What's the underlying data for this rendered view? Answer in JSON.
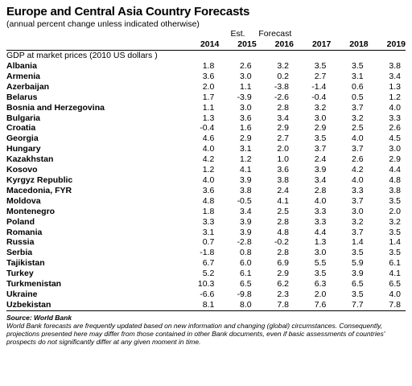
{
  "title": "Europe and Central Asia Country Forecasts",
  "subtitle": "(annual percent change unless indicated otherwise)",
  "header": {
    "est_label": "Est.",
    "forecast_label": "Forecast",
    "years": [
      "2014",
      "2015",
      "2016",
      "2017",
      "2018",
      "2019"
    ]
  },
  "section_label": "GDP at market prices (2010 US dollars )",
  "rows": [
    {
      "country": "Albania",
      "values": [
        "1.8",
        "2.6",
        "3.2",
        "3.5",
        "3.5",
        "3.8"
      ]
    },
    {
      "country": "Armenia",
      "values": [
        "3.6",
        "3.0",
        "0.2",
        "2.7",
        "3.1",
        "3.4"
      ]
    },
    {
      "country": "Azerbaijan",
      "values": [
        "2.0",
        "1.1",
        "-3.8",
        "-1.4",
        "0.6",
        "1.3"
      ]
    },
    {
      "country": "Belarus",
      "values": [
        "1.7",
        "-3.9",
        "-2.6",
        "-0.4",
        "0.5",
        "1.2"
      ]
    },
    {
      "country": "Bosnia and Herzegovina",
      "values": [
        "1.1",
        "3.0",
        "2.8",
        "3.2",
        "3.7",
        "4.0"
      ]
    },
    {
      "country": "Bulgaria",
      "values": [
        "1.3",
        "3.6",
        "3.4",
        "3.0",
        "3.2",
        "3.3"
      ]
    },
    {
      "country": "Croatia",
      "values": [
        "-0.4",
        "1.6",
        "2.9",
        "2.9",
        "2.5",
        "2.6"
      ]
    },
    {
      "country": "Georgia",
      "values": [
        "4.6",
        "2.9",
        "2.7",
        "3.5",
        "4.0",
        "4.5"
      ]
    },
    {
      "country": "Hungary",
      "values": [
        "4.0",
        "3.1",
        "2.0",
        "3.7",
        "3.7",
        "3.0"
      ]
    },
    {
      "country": "Kazakhstan",
      "values": [
        "4.2",
        "1.2",
        "1.0",
        "2.4",
        "2.6",
        "2.9"
      ]
    },
    {
      "country": "Kosovo",
      "values": [
        "1.2",
        "4.1",
        "3.6",
        "3.9",
        "4.2",
        "4.4"
      ]
    },
    {
      "country": "Kyrgyz Republic",
      "values": [
        "4.0",
        "3.9",
        "3.8",
        "3.4",
        "4.0",
        "4.8"
      ]
    },
    {
      "country": "Macedonia, FYR",
      "values": [
        "3.6",
        "3.8",
        "2.4",
        "2.8",
        "3.3",
        "3.8"
      ]
    },
    {
      "country": "Moldova",
      "values": [
        "4.8",
        "-0.5",
        "4.1",
        "4.0",
        "3.7",
        "3.5"
      ]
    },
    {
      "country": "Montenegro",
      "values": [
        "1.8",
        "3.4",
        "2.5",
        "3.3",
        "3.0",
        "2.0"
      ]
    },
    {
      "country": "Poland",
      "values": [
        "3.3",
        "3.9",
        "2.8",
        "3.3",
        "3.2",
        "3.2"
      ]
    },
    {
      "country": "Romania",
      "values": [
        "3.1",
        "3.9",
        "4.8",
        "4.4",
        "3.7",
        "3.5"
      ]
    },
    {
      "country": "Russia",
      "values": [
        "0.7",
        "-2.8",
        "-0.2",
        "1.3",
        "1.4",
        "1.4"
      ]
    },
    {
      "country": "Serbia",
      "values": [
        "-1.8",
        "0.8",
        "2.8",
        "3.0",
        "3.5",
        "3.5"
      ]
    },
    {
      "country": "Tajikistan",
      "values": [
        "6.7",
        "6.0",
        "6.9",
        "5.5",
        "5.9",
        "6.1"
      ]
    },
    {
      "country": "Turkey",
      "values": [
        "5.2",
        "6.1",
        "2.9",
        "3.5",
        "3.9",
        "4.1"
      ]
    },
    {
      "country": "Turkmenistan",
      "values": [
        "10.3",
        "6.5",
        "6.2",
        "6.3",
        "6.5",
        "6.5"
      ]
    },
    {
      "country": "Ukraine",
      "values": [
        "-6.6",
        "-9.8",
        "2.3",
        "2.0",
        "3.5",
        "4.0"
      ]
    },
    {
      "country": "Uzbekistan",
      "values": [
        "8.1",
        "8.0",
        "7.8",
        "7.6",
        "7.7",
        "7.8"
      ]
    }
  ],
  "source": "Source: World Bank",
  "note": "World Bank forecasts are frequently updated based on new information and changing (global) circumstances. Consequently, projections presented here may differ from those contained in other Bank documents, even if basic assessments of countries' prospects do not significantly differ at any given moment in time."
}
